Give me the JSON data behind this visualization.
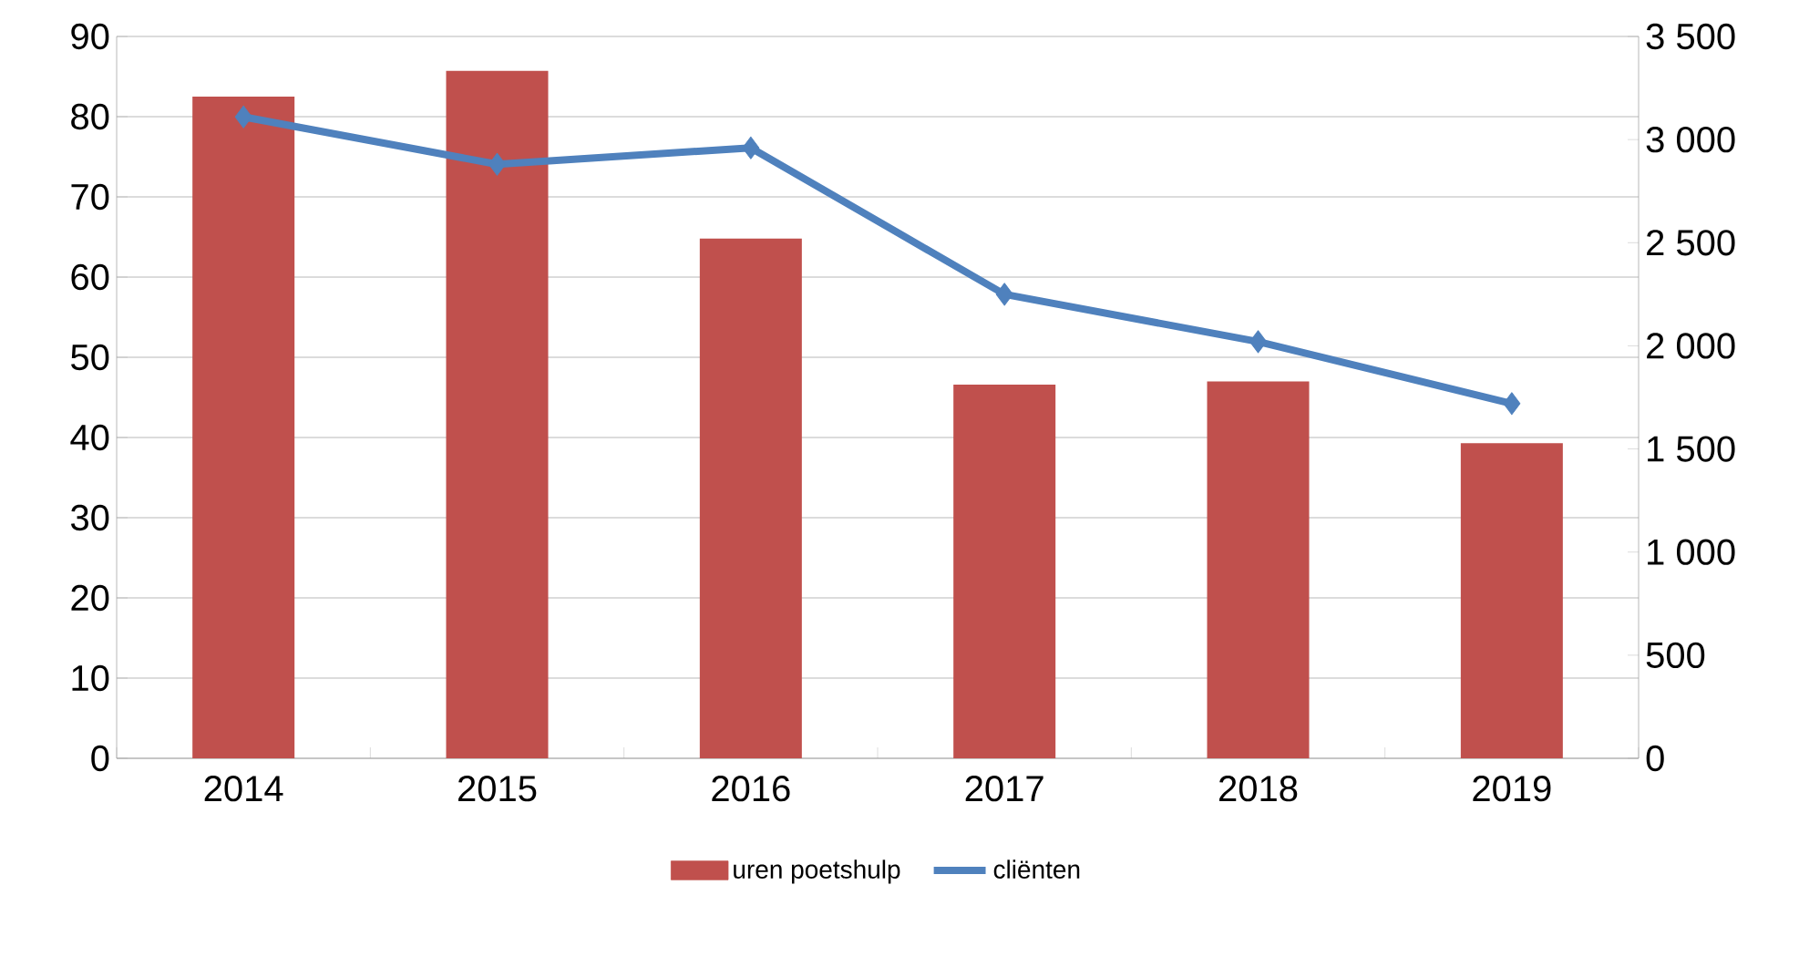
{
  "chart_data": {
    "type": "bar",
    "categories": [
      "2014",
      "2015",
      "2016",
      "2017",
      "2018",
      "2019"
    ],
    "series": [
      {
        "name": "uren poetshulp",
        "color": "#c0504d",
        "values": [
          82.5,
          85.7,
          64.8,
          46.6,
          47.0,
          39.3
        ]
      },
      {
        "name": "cliënten",
        "type": "line",
        "axis": "y2",
        "marker": "diamond",
        "color": "#4f81bd",
        "values": [
          3110,
          2880,
          2960,
          2250,
          2020,
          1720
        ]
      }
    ],
    "ylim": [
      0,
      90
    ],
    "yticks": [
      0,
      10,
      20,
      30,
      40,
      50,
      60,
      70,
      80,
      90
    ],
    "y2lim": [
      0,
      3500
    ],
    "y2ticks": [
      0,
      500,
      {
        "value": 1000,
        "label": "1 000"
      },
      {
        "value": 1500,
        "label": "1 500"
      },
      {
        "value": 2000,
        "label": "2 000"
      },
      {
        "value": 2500,
        "label": "2 500"
      },
      {
        "value": 3000,
        "label": "3 000"
      },
      {
        "value": 3500,
        "label": "3 500"
      }
    ],
    "grid": "y",
    "legend": "bottom"
  }
}
